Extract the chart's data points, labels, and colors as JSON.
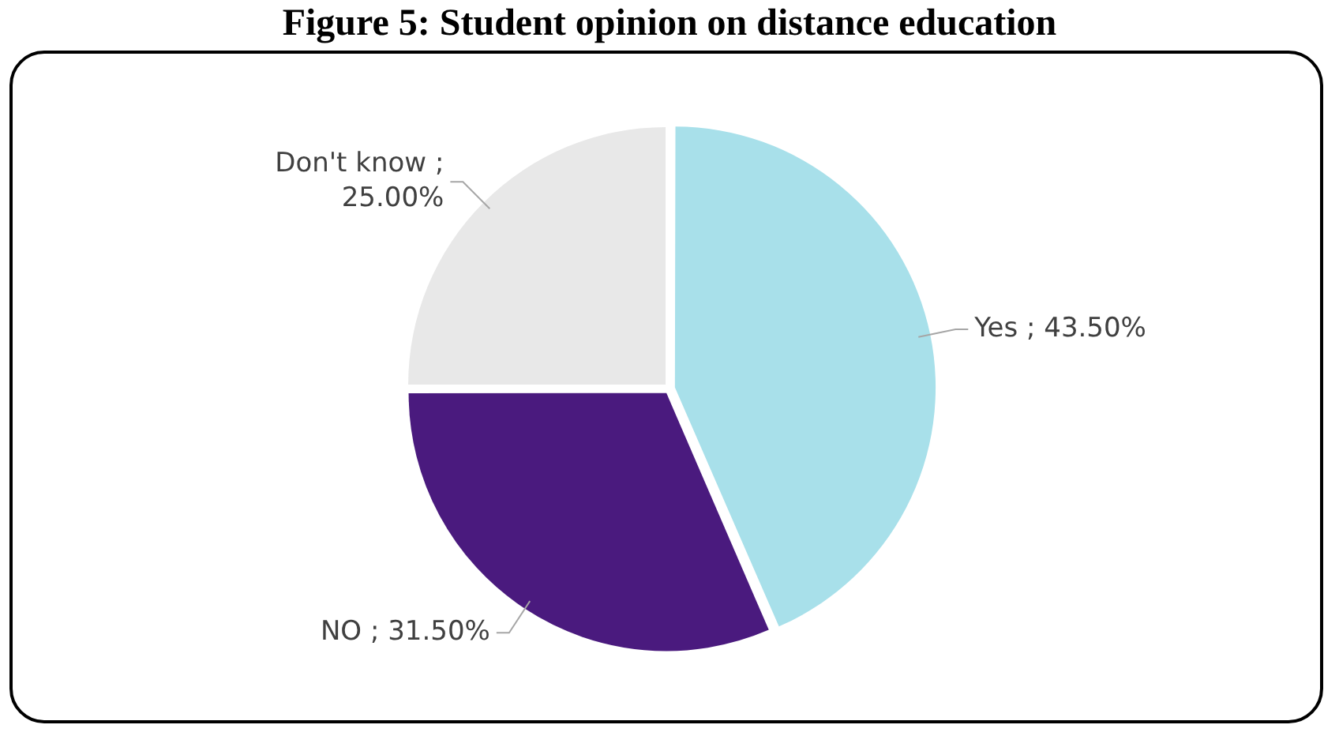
{
  "chart_data": {
    "type": "pie",
    "title": "Figure 5: Student opinion on distance education",
    "categories": [
      "Yes",
      "NO",
      "Don't know"
    ],
    "values": [
      43.5,
      31.5,
      25
    ],
    "colors": [
      "#a8e0ea",
      "#4a1a7e",
      "#e8e8e8"
    ],
    "value_labels": [
      "; 43.50%",
      "; 31.50%",
      "; 25.00%"
    ],
    "legend": false
  }
}
